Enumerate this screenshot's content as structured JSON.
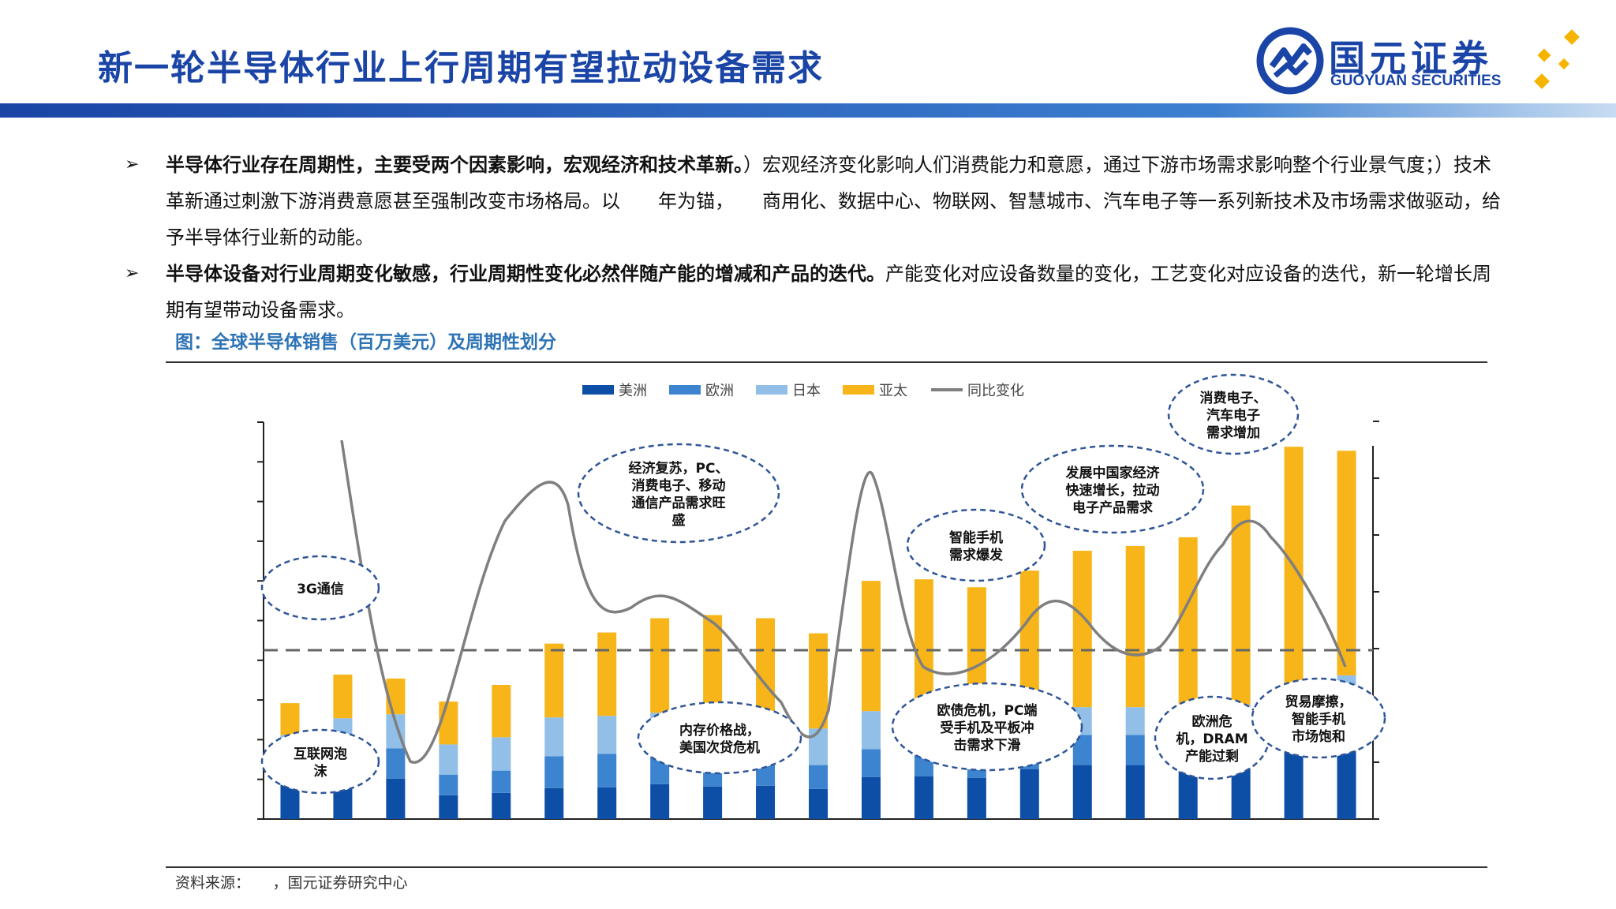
{
  "header": {
    "title": "新一轮半导体行业上行周期有望拉动设备需求",
    "logo_cn": "国元证券",
    "logo_en": "GUOYUAN SECURITIES",
    "brand_color": "#1a45a6",
    "accent_color": "#f4b400"
  },
  "bullets": [
    {
      "bold": "半导体行业存在周期性，主要受两个因素影响，宏观经济和技术革新。",
      "text": "）宏观经济变化影响人们消费能力和意愿，通过下游市场需求影响整个行业景气度；）技术革新通过刺激下游消费意愿甚至强制改变市场格局。以　　年为锚，　　商用化、数据中心、物联网、智慧城市、汽车电子等一系列新技术及市场需求做驱动，给予半导体行业新的动能。"
    },
    {
      "bold": "半导体设备对行业周期变化敏感，行业周期性变化必然伴随产能的增减和产品的迭代。",
      "text": "产能变化对应设备数量的变化，工艺变化对应设备的迭代，新一轮增长周期有望带动设备需求。"
    }
  ],
  "chart_title": "图：全球半导体销售（百万美元）及周期性划分",
  "source": "资料来源：　　，国元证券研究中心",
  "chart_data": {
    "type": "bar",
    "stacked": true,
    "bar_count": 21,
    "series": [
      {
        "name": "美洲",
        "color": "#0d4ea6",
        "values": [
          48,
          50,
          51,
          30,
          33,
          39,
          40,
          44,
          41,
          42,
          38,
          53,
          54,
          52,
          63,
          68,
          68,
          66,
          71,
          91,
          99
        ]
      },
      {
        "name": "欧洲",
        "color": "#3d84d0",
        "values": [
          33,
          34,
          38,
          26,
          28,
          40,
          42,
          41,
          38,
          38,
          30,
          35,
          37,
          37,
          37,
          38,
          38,
          36,
          38,
          39,
          42
        ]
      },
      {
        "name": "日本",
        "color": "#92bfe8",
        "values": [
          25,
          43,
          43,
          38,
          42,
          49,
          48,
          49,
          47,
          47,
          46,
          48,
          48,
          40,
          44,
          35,
          35,
          35,
          35,
          37,
          40
        ]
      },
      {
        "name": "亚太",
        "color": "#f7b519",
        "values": [
          40,
          55,
          45,
          54,
          66,
          93,
          105,
          119,
          131,
          126,
          120,
          164,
          163,
          163,
          169,
          197,
          203,
          218,
          251,
          302,
          283
        ]
      }
    ],
    "line_series": {
      "name": "同比变化",
      "color": "#7f7f7f"
    },
    "legend_position": "top",
    "dashed_reference": "zero",
    "annotations": [
      {
        "text": "3G通信",
        "type": "cycle-driver"
      },
      {
        "text": "互联网泡沫",
        "type": "downturn"
      },
      {
        "text": "经济复苏，PC、消费电子、移动通信产品需求旺盛",
        "type": "cycle-driver"
      },
      {
        "text": "内存价格战，美国次贷危机",
        "type": "downturn"
      },
      {
        "text": "智能手机需求爆发",
        "type": "cycle-driver"
      },
      {
        "text": "欧债危机，PC端受手机及平板冲击需求下滑",
        "type": "downturn"
      },
      {
        "text": "发展中国家经济快速增长，拉动电子产品需求",
        "type": "cycle-driver"
      },
      {
        "text": "欧洲危机，DRAM产能过剩",
        "type": "downturn"
      },
      {
        "text": "消费电子、汽车电子需求增加",
        "type": "cycle-driver"
      },
      {
        "text": "贸易摩擦，智能手机市场饱和",
        "type": "downturn"
      }
    ]
  }
}
